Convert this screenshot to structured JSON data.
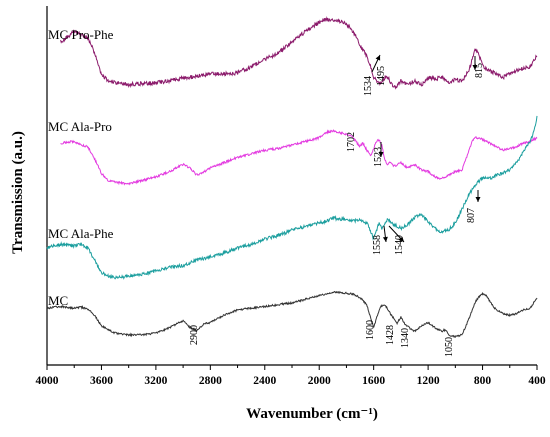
{
  "chart_data": {
    "type": "line",
    "title": "",
    "xlabel": "Wavenumber (cm⁻¹)",
    "ylabel": "Transmission (a.u.)",
    "xlim": [
      4000,
      400
    ],
    "x_reversed": true,
    "y_ticks_shown": false,
    "grid": false,
    "legend": "none (series labels written on the plot)",
    "x_ticks": [
      {
        "value": 4000,
        "label": "4000"
      },
      {
        "value": 3600,
        "label": "3600"
      },
      {
        "value": 3200,
        "label": "3200"
      },
      {
        "value": 2800,
        "label": "2800"
      },
      {
        "value": 2400,
        "label": "2400"
      },
      {
        "value": 2000,
        "label": "2000"
      },
      {
        "value": 1600,
        "label": "1600"
      },
      {
        "value": 1200,
        "label": "1200"
      },
      {
        "value": 800,
        "label": "800"
      },
      {
        "value": 400,
        "label": "400"
      }
    ],
    "ylim": [
      0,
      100
    ],
    "series": [
      {
        "name": "MC Pro-Phe",
        "color": "#8b1a6b",
        "x": [
          3900,
          3800,
          3750,
          3700,
          3650,
          3600,
          3550,
          3500,
          3400,
          3300,
          3200,
          3100,
          3000,
          2900,
          2800,
          2700,
          2600,
          2500,
          2400,
          2300,
          2200,
          2100,
          2000,
          1950,
          1900,
          1850,
          1800,
          1750,
          1700,
          1650,
          1620,
          1600,
          1560,
          1534,
          1510,
          1495,
          1470,
          1440,
          1400,
          1350,
          1300,
          1250,
          1200,
          1150,
          1100,
          1050,
          1000,
          950,
          900,
          870,
          850,
          830,
          815,
          790,
          760,
          700,
          650,
          600,
          550,
          500,
          450,
          420,
          400
        ],
        "y": [
          91,
          94,
          93,
          92,
          88,
          81.8,
          80,
          79.5,
          79,
          79.3,
          79.5,
          80,
          80.8,
          81.3,
          82,
          82,
          82.3,
          84,
          86,
          88,
          91,
          94,
          96.5,
          97.5,
          97.3,
          96.8,
          96,
          94,
          90,
          87,
          84,
          81,
          79.4,
          79.8,
          81.5,
          81,
          79.3,
          78,
          80,
          79,
          80,
          78.8,
          81,
          80.5,
          81,
          79.5,
          80.5,
          80,
          83,
          87,
          89,
          88,
          86,
          84,
          83,
          82,
          81,
          82,
          83,
          83.5,
          84,
          86,
          87
        ]
      },
      {
        "name": "MC Ala-Pro",
        "color": "#e33be0",
        "x": [
          3900,
          3800,
          3750,
          3700,
          3650,
          3600,
          3550,
          3500,
          3400,
          3300,
          3200,
          3100,
          3000,
          2950,
          2900,
          2850,
          2800,
          2700,
          2600,
          2500,
          2400,
          2300,
          2200,
          2100,
          2000,
          1950,
          1900,
          1850,
          1800,
          1750,
          1702,
          1680,
          1650,
          1620,
          1600,
          1580,
          1560,
          1540,
          1523,
          1500,
          1480,
          1450,
          1400,
          1350,
          1300,
          1250,
          1200,
          1150,
          1100,
          1050,
          1000,
          950,
          900,
          870,
          850,
          820,
          800,
          750,
          700,
          650,
          600,
          550,
          500,
          450,
          400
        ],
        "y": [
          62.5,
          63,
          62,
          61.5,
          58,
          54,
          52,
          51.5,
          51,
          52,
          53,
          54.5,
          56.5,
          55.5,
          53.5,
          54.3,
          55.5,
          57,
          58.5,
          59.5,
          60.5,
          61,
          62,
          63,
          64,
          65.5,
          66,
          65.5,
          65,
          64,
          61.5,
          62.5,
          60.5,
          59,
          61,
          63,
          63.5,
          62,
          58.5,
          56.5,
          57,
          56,
          57,
          55.5,
          56.5,
          55,
          54.5,
          53,
          52.5,
          53.5,
          54.5,
          55,
          60.5,
          63.5,
          64,
          64,
          63.5,
          62.5,
          61.5,
          60.5,
          61,
          61.5,
          62.5,
          63,
          64
        ]
      },
      {
        "name": "MC Ala-Phe",
        "color": "#1b9e9e",
        "x": [
          4000,
          3900,
          3800,
          3750,
          3700,
          3650,
          3600,
          3550,
          3500,
          3400,
          3300,
          3200,
          3100,
          3000,
          2900,
          2800,
          2700,
          2600,
          2500,
          2400,
          2300,
          2200,
          2100,
          2000,
          1950,
          1900,
          1850,
          1800,
          1750,
          1700,
          1650,
          1620,
          1600,
          1580,
          1558,
          1540,
          1520,
          1500,
          1450,
          1400,
          1350,
          1300,
          1250,
          1200,
          1150,
          1100,
          1050,
          1000,
          950,
          900,
          850,
          807,
          780,
          750,
          700,
          650,
          600,
          550,
          500,
          470,
          450,
          420,
          400
        ],
        "y": [
          33,
          34,
          33.5,
          34,
          33,
          29.5,
          26,
          25,
          24.5,
          25,
          25.5,
          26.5,
          27.5,
          28,
          29.5,
          30.5,
          31.5,
          33,
          34,
          35.5,
          36.5,
          38,
          39,
          40,
          40.5,
          41.5,
          41,
          41.3,
          40.5,
          41,
          40,
          37.5,
          35.5,
          38,
          40,
          38.5,
          40,
          41,
          39.5,
          38.5,
          39.5,
          41.5,
          42.5,
          40.5,
          38.5,
          37.5,
          38,
          40,
          44,
          48,
          51,
          52.5,
          53,
          52.5,
          53.5,
          54,
          55,
          57,
          60,
          62,
          63,
          66,
          70
        ]
      },
      {
        "name": "MC",
        "color": "#333333",
        "x": [
          4000,
          3900,
          3800,
          3750,
          3700,
          3650,
          3600,
          3500,
          3400,
          3300,
          3200,
          3100,
          3000,
          2950,
          2900,
          2850,
          2800,
          2700,
          2600,
          2500,
          2400,
          2300,
          2200,
          2100,
          2000,
          1950,
          1900,
          1850,
          1800,
          1750,
          1700,
          1650,
          1620,
          1600,
          1580,
          1550,
          1520,
          1500,
          1470,
          1428,
          1400,
          1370,
          1340,
          1300,
          1250,
          1200,
          1150,
          1100,
          1070,
          1050,
          1000,
          950,
          900,
          850,
          820,
          800,
          770,
          740,
          700,
          650,
          600,
          550,
          500,
          450,
          400
        ],
        "y": [
          16,
          16.5,
          16,
          16.3,
          15.8,
          14,
          11,
          9,
          8.5,
          8.5,
          9,
          10.5,
          12.5,
          10.5,
          9.8,
          11.5,
          12,
          14,
          15.5,
          16,
          16.5,
          17,
          17.5,
          18.5,
          19.5,
          20,
          20.5,
          20.4,
          20.2,
          20,
          19,
          17,
          13,
          10.5,
          13,
          16.5,
          17,
          16,
          14,
          11.8,
          13.5,
          11.5,
          10.5,
          9.5,
          11,
          12,
          10.5,
          9.5,
          10,
          8.5,
          8,
          8.5,
          13,
          18,
          19.5,
          20,
          19.5,
          17.5,
          15.5,
          14.5,
          14,
          14.5,
          15.5,
          16,
          19
        ]
      }
    ],
    "series_labels": [
      {
        "series": 0,
        "text": "MC Pro-Phe"
      },
      {
        "series": 1,
        "text": "MC Ala-Pro"
      },
      {
        "series": 2,
        "text": "MC Ala-Phe"
      },
      {
        "series": 3,
        "text": "MC"
      }
    ],
    "annotations": [
      {
        "series": 0,
        "x": 1534,
        "text": "1534",
        "arrow": true
      },
      {
        "series": 0,
        "x": 1495,
        "text": "1495",
        "arrow": false
      },
      {
        "series": 0,
        "x": 815,
        "text": "815",
        "arrow": true
      },
      {
        "series": 1,
        "x": 1702,
        "text": "1702",
        "arrow": false
      },
      {
        "series": 1,
        "x": 1523,
        "text": "1523",
        "arrow": true
      },
      {
        "series": 2,
        "x": 1558,
        "text": "1558",
        "arrow": true
      },
      {
        "series": 2,
        "x": 1540,
        "text": "1540",
        "arrow": true
      },
      {
        "series": 2,
        "x": 807,
        "text": "807",
        "arrow": true
      },
      {
        "series": 3,
        "x": 2900,
        "text": "2900",
        "arrow": false
      },
      {
        "series": 3,
        "x": 1600,
        "text": "1600",
        "arrow": false
      },
      {
        "series": 3,
        "x": 1428,
        "text": "1428",
        "arrow": false
      },
      {
        "series": 3,
        "x": 1340,
        "text": "1340",
        "arrow": false
      },
      {
        "series": 3,
        "x": 1050,
        "text": "1050",
        "arrow": false
      }
    ]
  }
}
